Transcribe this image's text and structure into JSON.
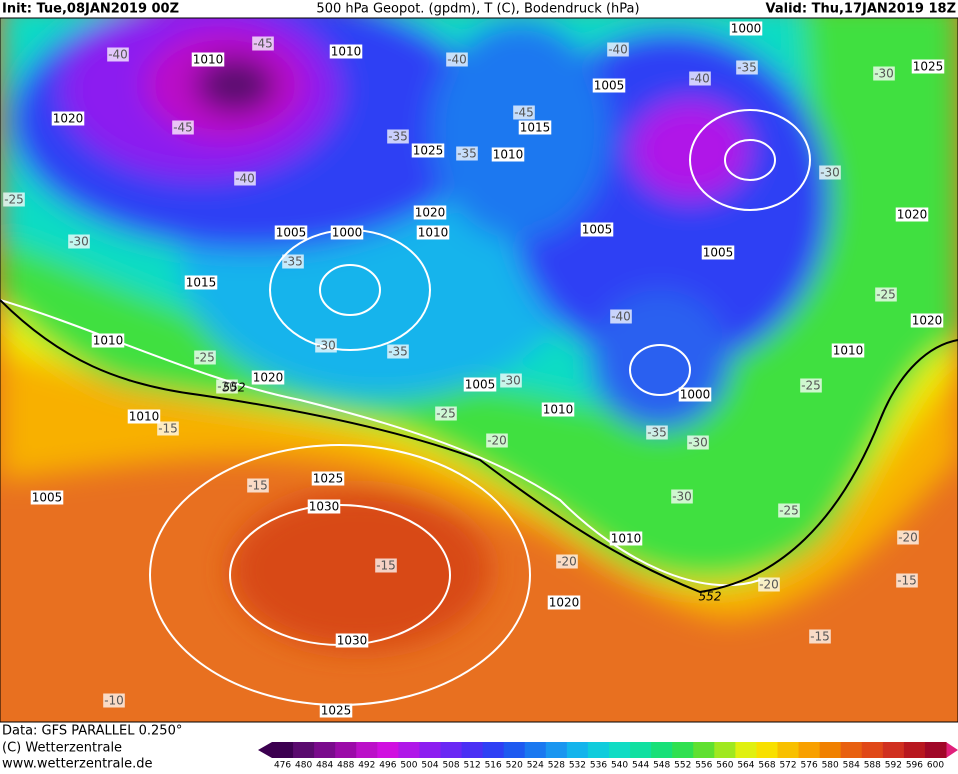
{
  "header": {
    "init": "Init: Tue,08JAN2019 00Z",
    "title": "500 hPa Geopot. (gpdm), T (C), Bodendruck (hPa)",
    "valid": "Valid: Thu,17JAN2019 18Z"
  },
  "footer": {
    "data": "Data: GFS PARALLEL 0.250°",
    "copyright": "(C) Wetterzentrale",
    "url": "www.wetterzentrale.de"
  },
  "isobar_labels": [
    "1010",
    "1010",
    "1020",
    "1025",
    "1015",
    "1010",
    "1020",
    "1005",
    "1000",
    "1010",
    "1015",
    "1010",
    "1020",
    "1005",
    "1010",
    "1010",
    "1005",
    "1025",
    "1030",
    "1030",
    "1025",
    "1020",
    "1010",
    "1000",
    "1005",
    "1005",
    "1005",
    "1000",
    "1025",
    "1020",
    "1020",
    "1010"
  ],
  "temperature_labels": [
    "-45",
    "-40",
    "-45",
    "-40",
    "-25",
    "-30",
    "-35",
    "-35",
    "-35",
    "-40",
    "-45",
    "-40",
    "-40",
    "-35",
    "-30",
    "-30",
    "-40",
    "-30",
    "-35",
    "-25",
    "-20",
    "-30",
    "-25",
    "-20",
    "-15",
    "-15",
    "-15",
    "-20",
    "-20",
    "-15",
    "-15",
    "-20",
    "-25",
    "-30",
    "-30",
    "-35",
    "-25",
    "-25",
    "-10"
  ],
  "contour_labels": [
    "552",
    "552"
  ],
  "colorbar": {
    "ticks": [
      476,
      480,
      484,
      488,
      492,
      496,
      500,
      504,
      508,
      512,
      516,
      520,
      524,
      528,
      532,
      536,
      540,
      544,
      548,
      552,
      556,
      560,
      564,
      568,
      572,
      576,
      580,
      584,
      588,
      592,
      596,
      600
    ],
    "colors": [
      "#3c0050",
      "#5a0a6e",
      "#7a0a8c",
      "#9b0aa8",
      "#bb10c8",
      "#d010e0",
      "#b018e8",
      "#8c1ef0",
      "#6a28f4",
      "#4a30f4",
      "#2e40f4",
      "#1e5af0",
      "#1a78f0",
      "#1a96f0",
      "#14b4ec",
      "#10ccdc",
      "#10dcc4",
      "#10e0a0",
      "#18e078",
      "#30e050",
      "#60e030",
      "#a0e820",
      "#e0f010",
      "#f8e000",
      "#f8c000",
      "#f8a000",
      "#f08000",
      "#e86010",
      "#e04818",
      "#d03020",
      "#b81820",
      "#a00828"
    ]
  }
}
